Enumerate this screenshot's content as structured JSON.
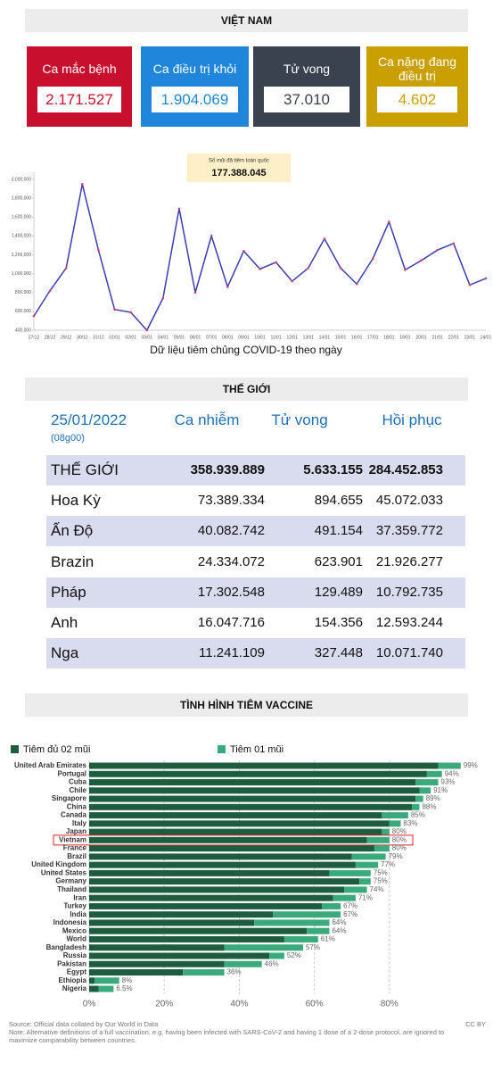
{
  "header": {
    "title": "VIỆT NAM"
  },
  "cards": [
    {
      "label": "Ca mắc bệnh",
      "value": "2.171.527",
      "color": "#c8102e"
    },
    {
      "label": "Ca điều trị khỏi",
      "value": "1.904.069",
      "color": "#1f86dc"
    },
    {
      "label": "Tử vong",
      "value": "37.010",
      "color": "#3a4250"
    },
    {
      "label": "Ca nặng đang điều trị",
      "value": "4.602",
      "color": "#c9a000"
    }
  ],
  "table": {
    "title": "THẾ GIỚI",
    "date": "25/01/2022",
    "time": "(08g00)",
    "columns": [
      "Ca nhiễm",
      "Tử vong",
      "Hồi phục"
    ],
    "rows": [
      [
        "THẾ GIỚI",
        "358.939.889",
        "5.633.155",
        "284.452.853"
      ],
      [
        "Hoa Kỳ",
        "73.389.334",
        "894.655",
        "45.072.033"
      ],
      [
        "Ấn Độ",
        "40.082.742",
        "491.154",
        "37.359.772"
      ],
      [
        "Brazin",
        "24.334.072",
        "623.901",
        "21.926.277"
      ],
      [
        "Pháp",
        "17.302.548",
        "129.489",
        "10.792.735"
      ],
      [
        "Anh",
        "16.047.716",
        "154.356",
        "12.593.244"
      ],
      [
        "Nga",
        "11.241.109",
        "327.448",
        "10.071.740"
      ]
    ]
  },
  "chart_data": [
    {
      "type": "line",
      "caption": "Dữ liệu tiêm chủng COVID-19 theo ngày",
      "annotation": {
        "label": "Số mũi đã tiêm toàn quốc",
        "value": "177.388.045"
      },
      "color": "#3b3bb5",
      "marker_color": "#e0406a",
      "categories": [
        "27/12",
        "28/12",
        "29/12",
        "30/12",
        "31/12",
        "01/01",
        "02/01",
        "03/01",
        "04/01",
        "05/01",
        "06/01",
        "07/01",
        "08/01",
        "09/01",
        "10/01",
        "11/01",
        "12/01",
        "13/01",
        "14/01",
        "15/01",
        "16/01",
        "17/01",
        "18/01",
        "19/01",
        "20/01",
        "21/01",
        "22/01",
        "23/01",
        "24/01"
      ],
      "values": [
        550000,
        820000,
        1060000,
        1950000,
        1250000,
        620000,
        590000,
        400000,
        740000,
        1690000,
        800000,
        1400000,
        860000,
        1240000,
        1050000,
        1120000,
        920000,
        1060000,
        1370000,
        1060000,
        890000,
        1160000,
        1550000,
        1040000,
        1140000,
        1250000,
        1320000,
        880000,
        950000
      ],
      "ylim": [
        400000,
        2000000
      ],
      "yticks": [
        {
          "value": 400000,
          "label": "400,000"
        },
        {
          "value": 600000,
          "label": "600,000"
        },
        {
          "value": 800000,
          "label": "800,000"
        },
        {
          "value": 1000000,
          "label": "1,000,000"
        },
        {
          "value": 1200000,
          "label": "1,200,000"
        },
        {
          "value": 1400000,
          "label": "1,400,000"
        },
        {
          "value": 1600000,
          "label": "1,600,000"
        },
        {
          "value": 1800000,
          "label": "1,800,000"
        },
        {
          "value": 2000000,
          "label": "2,000,000"
        }
      ]
    },
    {
      "type": "stacked-barh",
      "title": "TÌNH HÌNH TIÊM VACCINE",
      "legend": "top-left",
      "grid": true,
      "highlight": "Vietnam",
      "categories": [
        "United Arab Emirates",
        "Portugal",
        "Cuba",
        "Chile",
        "Singapore",
        "China",
        "Canada",
        "Italy",
        "Japan",
        "Vietnam",
        "France",
        "Brazil",
        "United Kingdom",
        "United States",
        "Germany",
        "Thailand",
        "Iran",
        "Turkey",
        "India",
        "Indonesia",
        "Mexico",
        "World",
        "Bangladesh",
        "Russia",
        "Pakistan",
        "Egypt",
        "Ethiopia",
        "Nigeria"
      ],
      "series": [
        {
          "name": "Tiêm đủ 02 mũi",
          "color": "#1d5c3e",
          "values": [
            93,
            90,
            87,
            88,
            87,
            86,
            78,
            80,
            78,
            74,
            76,
            70,
            71,
            64,
            72,
            68,
            65,
            62,
            49,
            44,
            58,
            52,
            36,
            48,
            36,
            25,
            1.5,
            2.5
          ]
        },
        {
          "name": "Tiêm 01 mũi",
          "color": "#3aaa7d",
          "values": [
            6,
            4,
            6,
            3,
            2,
            2,
            7,
            3,
            2,
            6,
            4,
            9,
            6,
            11,
            3,
            6,
            6,
            5,
            18,
            20,
            6,
            9,
            21,
            4,
            10,
            11,
            6.5,
            4
          ]
        }
      ],
      "totals": [
        99,
        94,
        93,
        91,
        89,
        88,
        85,
        83,
        80,
        80,
        80,
        79,
        77,
        75,
        75,
        74,
        71,
        67,
        67,
        64,
        64,
        61,
        57,
        52,
        46,
        36,
        8,
        6.5
      ],
      "total_labels": [
        "99%",
        "94%",
        "93%",
        "91%",
        "89%",
        "88%",
        "85%",
        "83%",
        "80%",
        "80%",
        "80%",
        "79%",
        "77%",
        "75%",
        "75%",
        "74%",
        "71%",
        "67%",
        "67%",
        "64%",
        "64%",
        "61%",
        "57%",
        "52%",
        "46%",
        "36%",
        "8%",
        "6.5%"
      ],
      "xlim": [
        0,
        100
      ],
      "xticks": [
        {
          "value": 0,
          "label": "0%"
        },
        {
          "value": 20,
          "label": "20%"
        },
        {
          "value": 40,
          "label": "40%"
        },
        {
          "value": 60,
          "label": "60%"
        },
        {
          "value": 80,
          "label": "80%"
        }
      ],
      "source": "Source: Official data collated by Our World in Data",
      "license": "CC BY",
      "note": "Note: Alternative definitions of a full vaccination, e.g. having been infected with SARS-CoV-2 and having 1 dose of a 2-dose protocol, are ignored to maximize comparability between countries."
    }
  ]
}
